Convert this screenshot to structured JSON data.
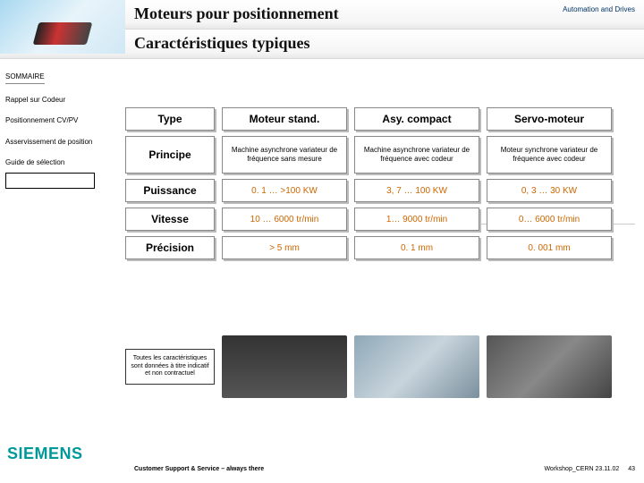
{
  "header": {
    "tagline": "Automation and Drives",
    "title1": "Moteurs pour positionnement",
    "title2": "Caractéristiques typiques"
  },
  "sidebar": {
    "sommaire": "SOMMAIRE",
    "items": [
      "Rappel sur Codeur",
      "Positionnement CV/PV",
      "Asservissement de position",
      "Guide de sélection"
    ]
  },
  "table": {
    "columns": [
      "Type",
      "Moteur stand.",
      "Asy. compact",
      "Servo-moteur"
    ],
    "rowLabels": [
      "Principe",
      "Puissance",
      "Vitesse",
      "Précision"
    ],
    "rows": [
      [
        "Machine asynchrone variateur de fréquence sans mesure",
        "Machine asynchrone variateur de fréquence avec codeur",
        "Moteur synchrone variateur de fréquence avec codeur"
      ],
      [
        "0. 1 … >100 KW",
        "3, 7 … 100 KW",
        "0, 3 … 30 KW"
      ],
      [
        "10 … 6000 tr/min",
        "1… 9000 tr/min",
        "0… 6000 tr/min"
      ],
      [
        "> 5 mm",
        "0. 1 mm",
        "0. 001 mm"
      ]
    ],
    "colors": {
      "rowLabel": "#000000",
      "header": "#000000",
      "principeText": "#000000",
      "dataText": "#cc6600",
      "cellBg": "#ffffff",
      "cellBorder": "#888888",
      "cellShadow": "#bbbbbb"
    }
  },
  "caption": "Toutes les caractéristiques sont données à titre indicatif et non contractuel",
  "footer": {
    "logo": "SIEMENS",
    "left": "Customer Support & Service – always there",
    "rightEvent": "Workshop_CERN 23.11.02",
    "page": "43"
  }
}
